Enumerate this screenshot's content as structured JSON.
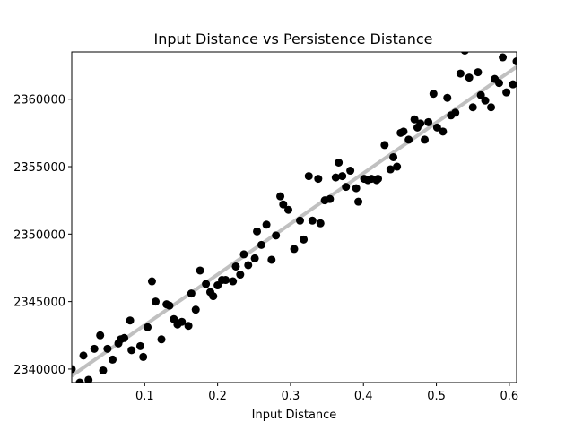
{
  "chart_data": {
    "type": "scatter",
    "title": "Input Distance vs Persistence Distance",
    "xlabel": "Input Distance",
    "ylabel": "",
    "xlim": [
      0.0,
      0.61
    ],
    "ylim": [
      2339000,
      2363500
    ],
    "xticks": [
      0.1,
      0.2,
      0.3,
      0.4,
      0.5,
      0.6
    ],
    "xtick_labels": [
      "0.1",
      "0.2",
      "0.3",
      "0.4",
      "0.5",
      "0.6"
    ],
    "yticks": [
      2340000,
      2345000,
      2350000,
      2355000,
      2360000
    ],
    "ytick_labels": [
      "2340000",
      "2345000",
      "2350000",
      "2355000",
      "2360000"
    ],
    "grid": false,
    "point_color": "#000000",
    "fit_line_color": "#c0c0c0",
    "fit_line": {
      "x": [
        0.0,
        0.61
      ],
      "y": [
        2339500,
        2362400
      ]
    },
    "x": [
      0.0,
      0.005,
      0.011,
      0.016,
      0.023,
      0.031,
      0.039,
      0.043,
      0.049,
      0.056,
      0.064,
      0.067,
      0.072,
      0.08,
      0.082,
      0.094,
      0.098,
      0.104,
      0.11,
      0.115,
      0.123,
      0.13,
      0.134,
      0.14,
      0.145,
      0.151,
      0.16,
      0.164,
      0.17,
      0.176,
      0.184,
      0.19,
      0.194,
      0.2,
      0.206,
      0.211,
      0.221,
      0.225,
      0.231,
      0.236,
      0.242,
      0.251,
      0.254,
      0.26,
      0.267,
      0.274,
      0.28,
      0.286,
      0.29,
      0.297,
      0.305,
      0.313,
      0.318,
      0.325,
      0.33,
      0.338,
      0.341,
      0.347,
      0.354,
      0.362,
      0.366,
      0.371,
      0.376,
      0.382,
      0.39,
      0.393,
      0.401,
      0.406,
      0.411,
      0.418,
      0.42,
      0.429,
      0.437,
      0.441,
      0.446,
      0.451,
      0.455,
      0.462,
      0.47,
      0.474,
      0.478,
      0.484,
      0.489,
      0.496,
      0.501,
      0.509,
      0.515,
      0.52,
      0.526,
      0.533,
      0.539,
      0.545,
      0.55,
      0.557,
      0.561,
      0.567,
      0.575,
      0.58,
      0.586,
      0.591,
      0.596,
      0.605,
      0.61
    ],
    "y": [
      2340000,
      2338700,
      2339000,
      2341000,
      2339200,
      2341500,
      2342500,
      2339900,
      2341500,
      2340700,
      2341900,
      2342200,
      2342300,
      2343600,
      2341400,
      2341700,
      2340900,
      2343100,
      2346500,
      2345000,
      2342200,
      2344800,
      2344700,
      2343700,
      2343300,
      2343500,
      2343200,
      2345600,
      2344400,
      2347300,
      2346300,
      2345700,
      2345400,
      2346200,
      2346600,
      2346600,
      2346500,
      2347600,
      2347000,
      2348500,
      2347700,
      2348200,
      2350200,
      2349200,
      2350700,
      2348100,
      2349900,
      2352800,
      2352200,
      2351800,
      2348900,
      2351000,
      2349600,
      2354300,
      2351000,
      2354100,
      2350800,
      2352500,
      2352600,
      2354200,
      2355300,
      2354300,
      2353500,
      2354700,
      2353400,
      2352400,
      2354100,
      2354000,
      2354100,
      2354000,
      2354100,
      2356600,
      2354800,
      2355700,
      2355000,
      2357500,
      2357600,
      2357000,
      2358500,
      2357900,
      2358200,
      2357000,
      2358300,
      2360400,
      2357900,
      2357600,
      2360100,
      2358800,
      2359000,
      2361900,
      2363600,
      2361600,
      2359400,
      2362000,
      2360300,
      2359900,
      2359400,
      2361500,
      2361200,
      2363100,
      2360500,
      2361100,
      2362800
    ]
  }
}
